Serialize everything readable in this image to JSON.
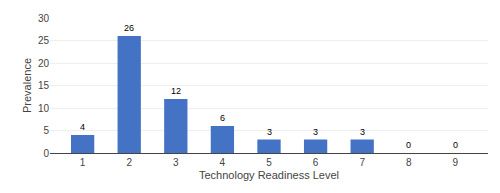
{
  "chart_data": {
    "type": "bar",
    "x": [
      1,
      2,
      3,
      4,
      5,
      6,
      7,
      8,
      9
    ],
    "values": [
      4,
      26,
      12,
      6,
      3,
      3,
      3,
      0,
      0
    ],
    "color": "#4472C4",
    "xlabel": "Technology Readiness Level",
    "ylabel": "Prevalence",
    "xlim": [
      0.3,
      9.7
    ],
    "xticks": [
      1,
      2,
      3,
      4,
      5,
      6,
      7,
      8,
      9
    ],
    "ylim": [
      0,
      30
    ],
    "yticks": [
      0,
      5,
      10,
      15,
      20,
      25,
      30
    ],
    "grid": true,
    "data_labels": true
  }
}
